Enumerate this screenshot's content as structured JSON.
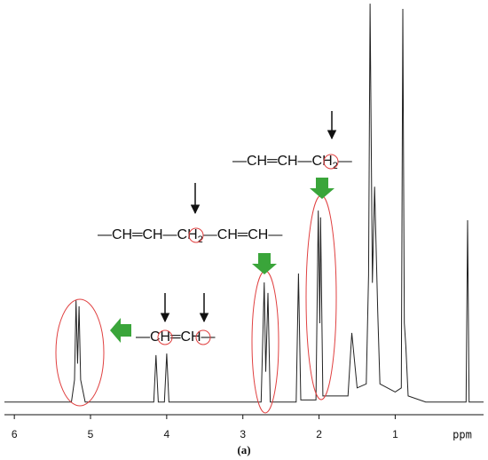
{
  "chart_data": {
    "type": "line",
    "x_label": "ppm",
    "caption": "(a)",
    "xlim": [
      6.13,
      -0.16
    ],
    "xticks": [
      6,
      5,
      4,
      3,
      2,
      1
    ],
    "ylim": [
      0,
      100
    ],
    "color": "#222222",
    "series": [
      {
        "name": null,
        "color": "#222222",
        "x": [
          6.13,
          5.25,
          5.21,
          5.19,
          5.17,
          5.15,
          5.13,
          5.1,
          5.07,
          4.17,
          4.14,
          4.11,
          4.03,
          4.0,
          3.97,
          2.76,
          2.72,
          2.7,
          2.67,
          2.64,
          2.3,
          2.27,
          2.24,
          2.04,
          2.01,
          1.99,
          1.98,
          1.95,
          1.62,
          1.57,
          1.5,
          1.38,
          1.35,
          1.33,
          1.3,
          1.27,
          1.23,
          1.2,
          1.0,
          0.92,
          0.9,
          0.88,
          0.86,
          0.83,
          0.6,
          0.07,
          0.05,
          0.03,
          -0.16
        ],
        "values": [
          0.5,
          0.5,
          6,
          25.7,
          10,
          24.2,
          6,
          3.3,
          0.5,
          0.5,
          12.1,
          0.5,
          0.5,
          12.5,
          0.5,
          0.5,
          30.1,
          8,
          27.5,
          0.5,
          0.5,
          32.3,
          1,
          1,
          47.9,
          20,
          46.2,
          2,
          2,
          17.6,
          4,
          5,
          31.9,
          99.1,
          30,
          53.8,
          23,
          5,
          3,
          4,
          97.8,
          20,
          14.3,
          2,
          0.5,
          0.5,
          45.5,
          0.5,
          0.5
        ]
      }
    ],
    "annotations": [
      "—CH═CH—CH",
      "2",
      "—",
      "—CH═CH—CH",
      "2",
      "—CH═CH—",
      "—CH═CH—"
    ]
  }
}
